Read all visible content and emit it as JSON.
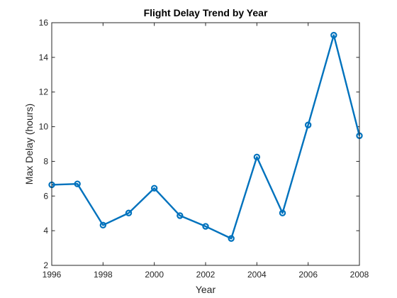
{
  "chart_data": {
    "type": "line",
    "title": "Flight Delay Trend by Year",
    "xlabel": "Year",
    "ylabel": "Max Delay (hours)",
    "xlim": [
      1996,
      2008
    ],
    "ylim": [
      2,
      16
    ],
    "x_ticks": [
      1996,
      1998,
      2000,
      2002,
      2004,
      2006,
      2008
    ],
    "y_ticks": [
      2,
      4,
      6,
      8,
      10,
      12,
      14,
      16
    ],
    "grid": false,
    "series": [
      {
        "color": "#0072BD",
        "marker": "circle",
        "points": [
          {
            "x": 1996,
            "y": 6.65
          },
          {
            "x": 1997,
            "y": 6.7
          },
          {
            "x": 1998,
            "y": 4.32
          },
          {
            "x": 1999,
            "y": 5.02
          },
          {
            "x": 2000,
            "y": 6.45
          },
          {
            "x": 2001,
            "y": 4.87
          },
          {
            "x": 2002,
            "y": 4.25
          },
          {
            "x": 2003,
            "y": 3.55
          },
          {
            "x": 2004,
            "y": 8.25
          },
          {
            "x": 2005,
            "y": 5.02
          },
          {
            "x": 2006,
            "y": 10.1
          },
          {
            "x": 2007,
            "y": 15.28
          },
          {
            "x": 2008,
            "y": 9.48
          }
        ]
      }
    ]
  }
}
